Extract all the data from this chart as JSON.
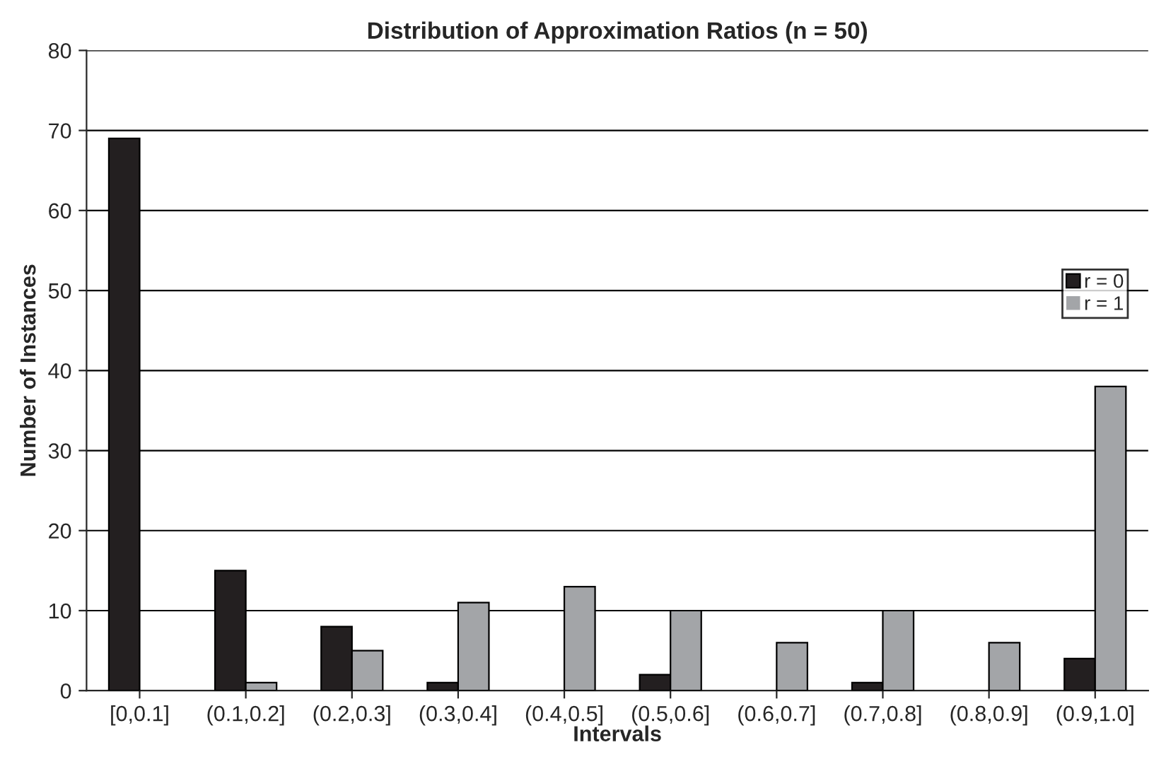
{
  "chart_data": {
    "type": "bar",
    "title": "Distribution of Approximation Ratios (n = 50)",
    "xlabel": "Intervals",
    "ylabel": "Number of Instances",
    "categories": [
      "[0,0.1]",
      "(0.1,0.2]",
      "(0.2,0.3]",
      "(0.3,0.4]",
      "(0.4,0.5]",
      "(0.5,0.6]",
      "(0.6,0.7]",
      "(0.7,0.8]",
      "(0.8,0.9]",
      "(0.9,1.0]"
    ],
    "series": [
      {
        "name": "r = 0",
        "color": "#231f20",
        "values": [
          69,
          15,
          8,
          1,
          0,
          2,
          0,
          1,
          0,
          4
        ]
      },
      {
        "name": "r = 1",
        "color": "#a3a5a8",
        "values": [
          0,
          1,
          5,
          11,
          13,
          10,
          6,
          10,
          6,
          38
        ]
      }
    ],
    "ylim": [
      0,
      80
    ],
    "yticks": [
      0,
      10,
      20,
      30,
      40,
      50,
      60,
      70,
      80
    ],
    "grid": "y",
    "legend": "right"
  }
}
